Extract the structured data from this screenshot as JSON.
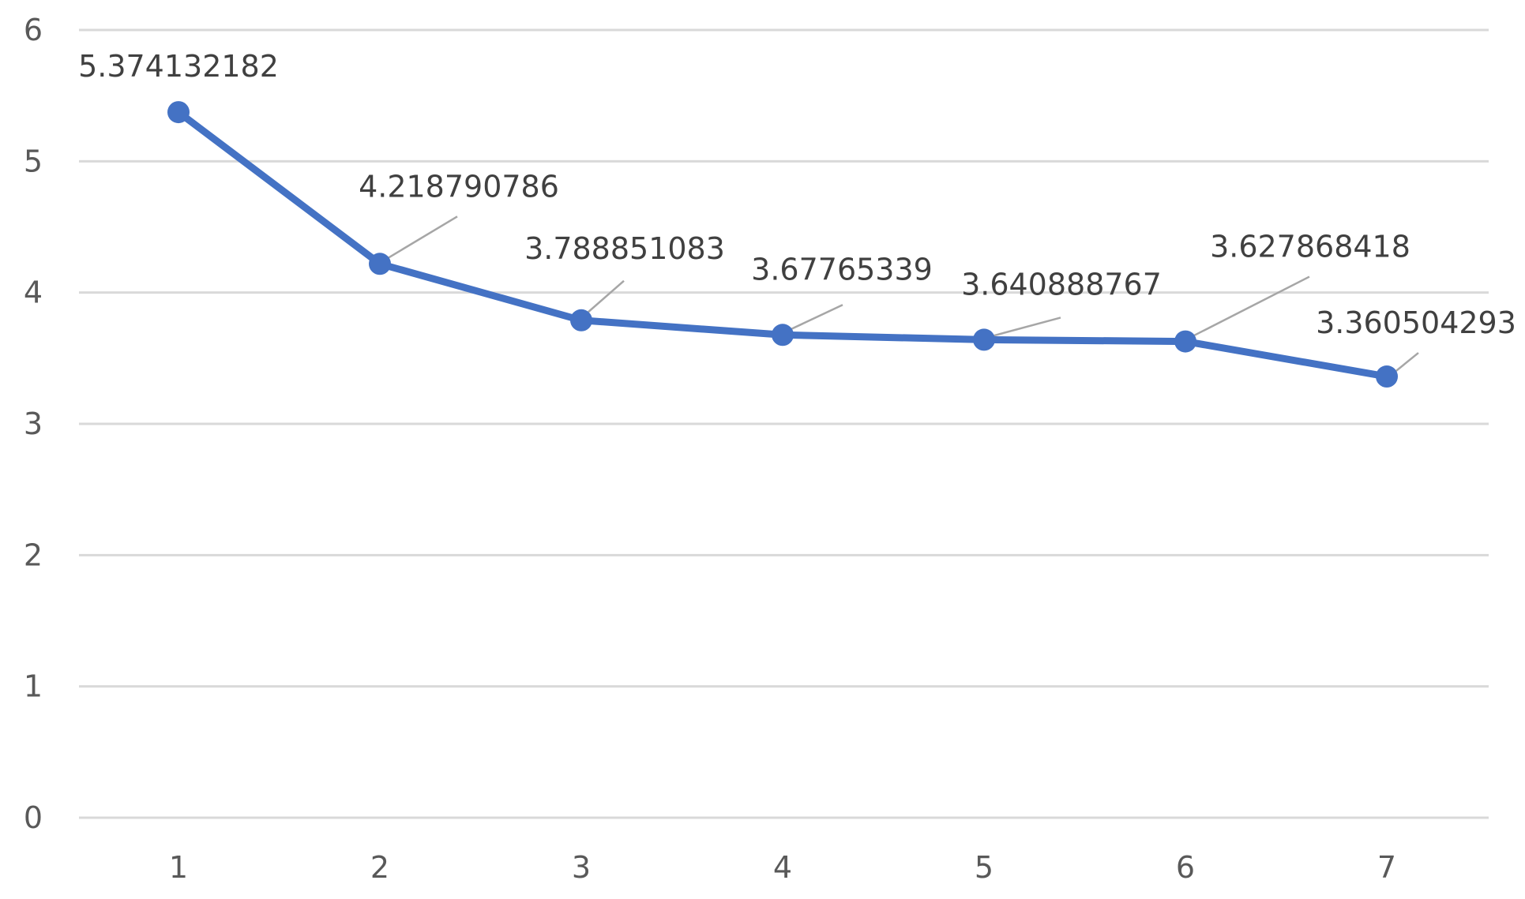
{
  "chart_data": {
    "type": "line",
    "title": "",
    "xlabel": "",
    "ylabel": "",
    "x": [
      "1",
      "2",
      "3",
      "4",
      "5",
      "6",
      "7"
    ],
    "values": [
      5.374132182,
      4.218790786,
      3.788851083,
      3.67765339,
      3.640888767,
      3.627868418,
      3.360504293
    ],
    "data_labels": [
      "5.374132182",
      "4.218790786",
      "3.788851083",
      "3.67765339",
      "3.640888767",
      "3.627868418",
      "3.360504293"
    ],
    "yticks": [
      "0",
      "1",
      "2",
      "3",
      "4",
      "5",
      "6"
    ],
    "ylim": [
      0,
      6
    ],
    "grid": true,
    "legend": "none",
    "colors": {
      "series": "#4472c4",
      "grid": "#d9d9d9",
      "tick_text": "#595959",
      "label_text": "#404040",
      "leader_line": "#a6a6a6"
    }
  }
}
